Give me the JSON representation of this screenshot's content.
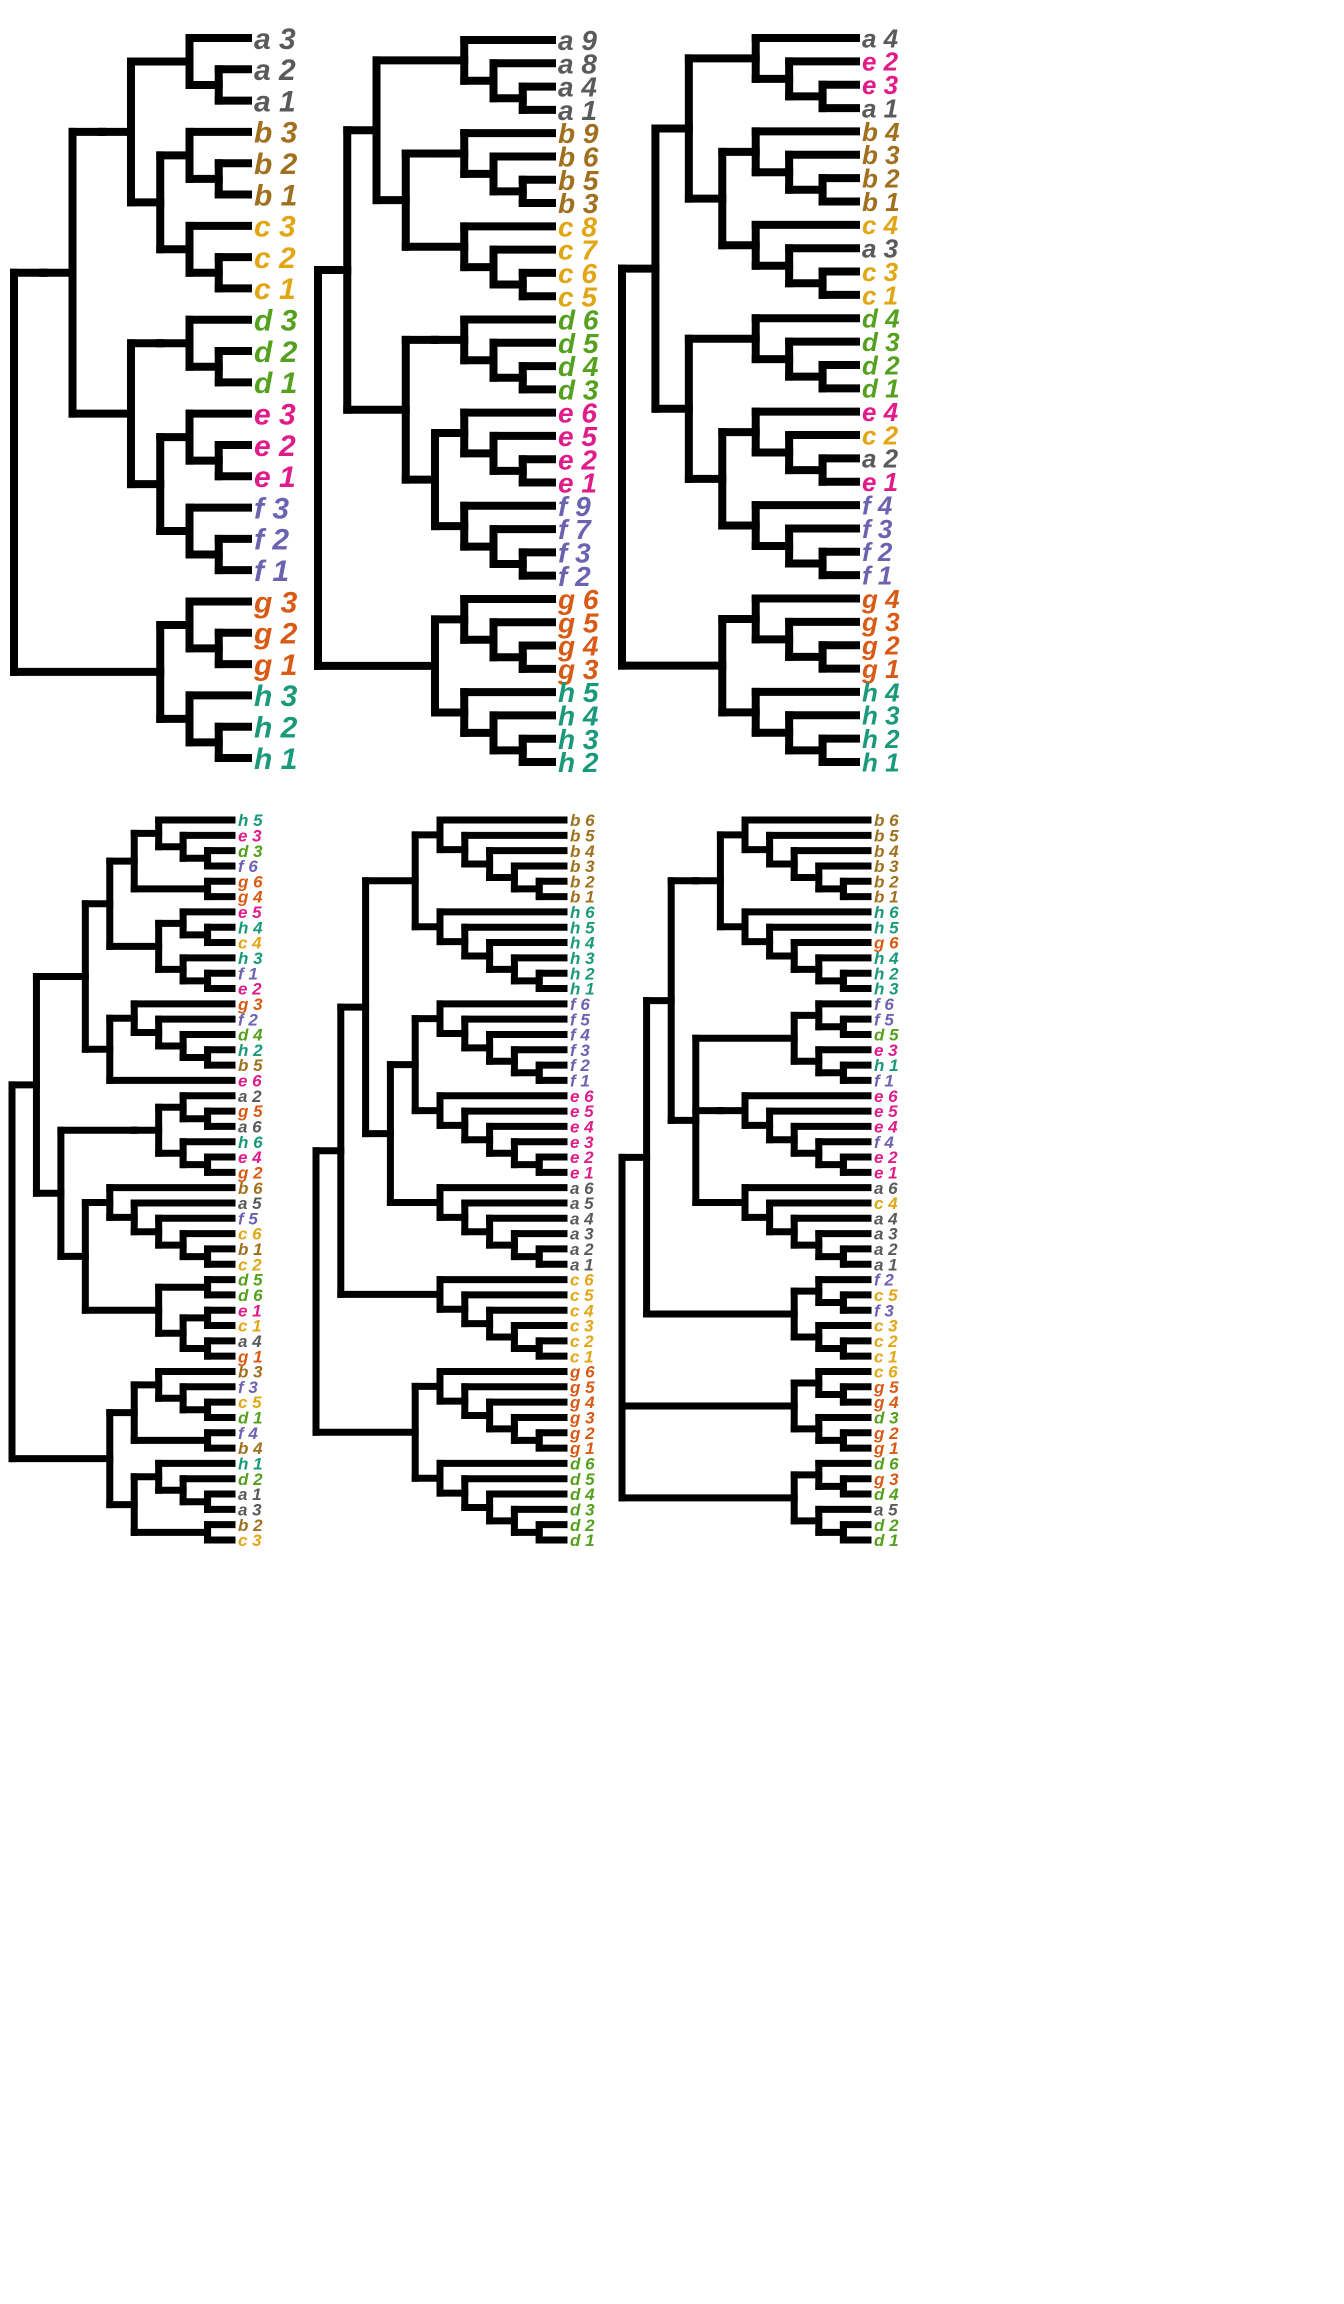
{
  "colors": {
    "a": "#5a5a5a",
    "b": "#a0701e",
    "c": "#e2a614",
    "d": "#55a01e",
    "e": "#e01c8a",
    "f": "#6c63b0",
    "g": "#d85a14",
    "h": "#1a9a7a"
  },
  "trees": [
    {
      "leaves": [
        "a 3",
        "a 2",
        "a 1",
        "b 3",
        "b 2",
        "b 1",
        "c 3",
        "c 2",
        "c 1",
        "d 3",
        "d 2",
        "d 1",
        "e 3",
        "e 2",
        "e 1",
        "f 3",
        "f 2",
        "f 1",
        "g 3",
        "g 2",
        "g 1",
        "h 3",
        "h 2",
        "h 1"
      ],
      "newick": "((((((0,(1,2)),((3,(4,5)),(6,(7,8))))),(((9,(10,11))),((12,(13,14)),(15,(16,17)))))),((18,(19,20)),(21,(22,23))))"
    },
    {
      "leaves": [
        "a 9",
        "a 8",
        "a 4",
        "a 1",
        "b 9",
        "b 6",
        "b 5",
        "b 3",
        "c 8",
        "c 7",
        "c 6",
        "c 5",
        "d 6",
        "d 5",
        "d 4",
        "d 3",
        "e 6",
        "e 5",
        "e 2",
        "e 1",
        "f 9",
        "f 7",
        "f 3",
        "f 2",
        "g 6",
        "g 5",
        "g 4",
        "g 3",
        "h 5",
        "h 4",
        "h 3",
        "h 2"
      ],
      "newick": "((((0,(1,(2,3))),(((4,(5,(6,7)))),(8,(9,(10,11))))),(((12,(13,(14,15)))),((16,(17,(18,19))),(20,(21,(22,23)))))),((24,(25,(26,27))),(28,(29,(30,31)))))"
    },
    {
      "leaves": [
        "a 4",
        "e 2",
        "e 3",
        "a 1",
        "b 4",
        "b 3",
        "b 2",
        "b 1",
        "c 4",
        "a 3",
        "c 3",
        "c 1",
        "d 4",
        "d 3",
        "d 2",
        "d 1",
        "e 4",
        "c 2",
        "a 2",
        "e 1",
        "f 4",
        "f 3",
        "f 2",
        "f 1",
        "g 4",
        "g 3",
        "g 2",
        "g 1",
        "h 4",
        "h 3",
        "h 2",
        "h 1"
      ],
      "newick": "((((0,(1,(2,3))),((4,(5,(6,7))),(8,(9,(10,11))))),((12,(13,(14,15))),((16,(17,(18,19))),(20,(21,(22,23)))))),((24,(25,(26,27))),(28,(29,(30,31)))))"
    },
    {
      "leaves": [
        "h 5",
        "e 3",
        "d 3",
        "f 6",
        "g 6",
        "g 4",
        "e 5",
        "h 4",
        "c 4",
        "h 3",
        "f 1",
        "e 2",
        "g 3",
        "f 2",
        "d 4",
        "h 2",
        "b 5",
        "e 6",
        "a 2",
        "g 5",
        "a 6",
        "h 6",
        "e 4",
        "g 2",
        "b 6",
        "a 5",
        "f 5",
        "c 6",
        "b 1",
        "c 2",
        "d 5",
        "d 6",
        "e 1",
        "c 1",
        "a 4",
        "g 1",
        "b 3",
        "f 3",
        "c 5",
        "d 1",
        "f 4",
        "b 4",
        "h 1",
        "d 2",
        "a 1",
        "a 3",
        "b 2",
        "c 3"
      ],
      "newick": "((((((0,(1,(2,3))),(4,5)),((6,(7,8)),(9,(10,11)))),((12,(13,(14,(15,16)))),17)),((((18,(19,20)),(21,(22,23)))),((24,(25,(26,(27,(28,29))))),((30,31),((32,33),(34,35)))))),(((36,(37,(38,39))),(40,41)),((42,(43,(44,45))),(46,47))))"
    },
    {
      "leaves": [
        "b 6",
        "b 5",
        "b 4",
        "b 3",
        "b 2",
        "b 1",
        "h 6",
        "h 5",
        "h 4",
        "h 3",
        "h 2",
        "h 1",
        "f 6",
        "f 5",
        "f 4",
        "f 3",
        "f 2",
        "f 1",
        "e 6",
        "e 5",
        "e 4",
        "e 3",
        "e 2",
        "e 1",
        "a 6",
        "a 5",
        "a 4",
        "a 3",
        "a 2",
        "a 1",
        "c 6",
        "c 5",
        "c 4",
        "c 3",
        "c 2",
        "c 1",
        "g 6",
        "g 5",
        "g 4",
        "g 3",
        "g 2",
        "g 1",
        "d 6",
        "d 5",
        "d 4",
        "d 3",
        "d 2",
        "d 1"
      ],
      "newick": "(((((0,(1,(2,(3,(4,5))))),(6,(7,(8,(9,(10,11)))))),(((12,(13,(14,(15,(16,17))))),(18,(19,(20,(21,(22,23)))))),(24,(25,(26,(27,(28,29))))))),(30,(31,(32,(33,(34,35)))))),((36,(37,(38,(39,(40,41))))),(42,(43,(44,(45,(46,47)))))))"
    },
    {
      "leaves": [
        "b 6",
        "b 5",
        "b 4",
        "b 3",
        "b 2",
        "b 1",
        "h 6",
        "h 5",
        "g 6",
        "h 4",
        "h 2",
        "h 3",
        "f 6",
        "f 5",
        "d 5",
        "e 3",
        "h 1",
        "f 1",
        "e 6",
        "e 5",
        "e 4",
        "f 4",
        "e 2",
        "e 1",
        "a 6",
        "c 4",
        "a 4",
        "a 3",
        "a 2",
        "a 1",
        "f 2",
        "c 5",
        "f 3",
        "c 3",
        "c 2",
        "c 1",
        "c 6",
        "g 5",
        "g 4",
        "d 3",
        "g 2",
        "g 1",
        "d 6",
        "g 3",
        "d 4",
        "a 5",
        "d 2",
        "d 1"
      ],
      "newick": "((((((0,(1,(2,(3,(4,5))))),(6,(7,(8,(9,(10,11))))))),(((12,(13,14)),(15,(16,17))),((18,(19,(20,(21,(22,23)))))),(24,(25,(26,(27,(28,29))))))),((30,(31,32)),(33,(34,35)))),((36,(37,38)),(39,(40,41))),((42,(43,44)),(45,(46,47)))))"
    }
  ]
}
